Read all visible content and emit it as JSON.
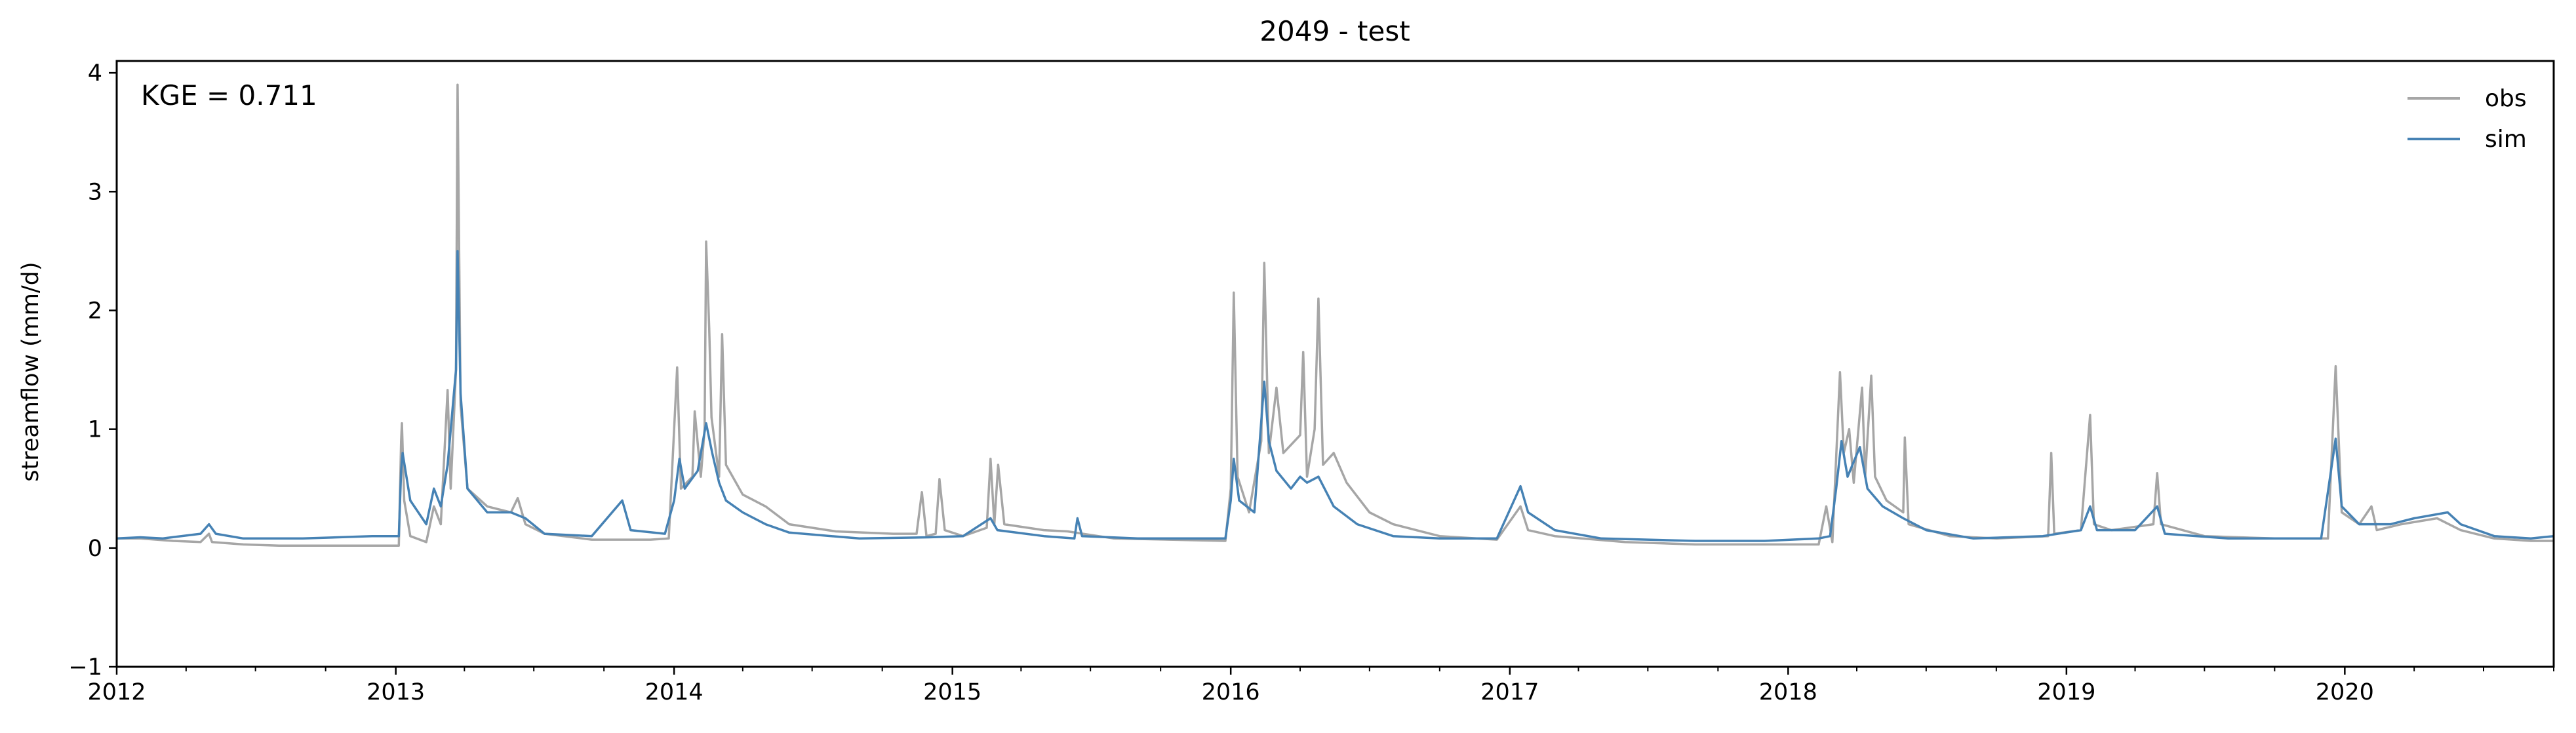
{
  "chart_data": {
    "type": "line",
    "title": "2049 - test",
    "xlabel": "",
    "ylabel": "streamflow (mm/d)",
    "xlim": [
      "2012-01-01",
      "2020-10-01"
    ],
    "ylim": [
      -1,
      4.1
    ],
    "yticks": [
      -1,
      0,
      1,
      2,
      3,
      4
    ],
    "xticks": [
      "2012",
      "2013",
      "2014",
      "2015",
      "2016",
      "2017",
      "2018",
      "2019",
      "2020"
    ],
    "grid": false,
    "legend": {
      "position": "top-right",
      "entries": [
        "obs",
        "sim"
      ]
    },
    "annotation": "KGE = 0.711",
    "colors": {
      "obs": "#a6a6a6",
      "sim": "#4682b4"
    },
    "series": [
      {
        "name": "obs",
        "points": [
          [
            "2012-01-01",
            0.08
          ],
          [
            "2012-02-01",
            0.08
          ],
          [
            "2012-03-15",
            0.06
          ],
          [
            "2012-04-20",
            0.05
          ],
          [
            "2012-05-01",
            0.12
          ],
          [
            "2012-05-05",
            0.05
          ],
          [
            "2012-06-15",
            0.03
          ],
          [
            "2012-08-01",
            0.02
          ],
          [
            "2012-10-01",
            0.02
          ],
          [
            "2012-12-01",
            0.02
          ],
          [
            "2013-01-05",
            0.02
          ],
          [
            "2013-01-08",
            0.9
          ],
          [
            "2013-01-09",
            1.05
          ],
          [
            "2013-01-12",
            0.4
          ],
          [
            "2013-01-20",
            0.1
          ],
          [
            "2013-02-10",
            0.05
          ],
          [
            "2013-02-20",
            0.35
          ],
          [
            "2013-03-01",
            0.2
          ],
          [
            "2013-03-10",
            1.33
          ],
          [
            "2013-03-14",
            0.5
          ],
          [
            "2013-03-21",
            1.5
          ],
          [
            "2013-03-23",
            3.9
          ],
          [
            "2013-03-27",
            1.2
          ],
          [
            "2013-04-05",
            0.5
          ],
          [
            "2013-05-01",
            0.35
          ],
          [
            "2013-06-01",
            0.3
          ],
          [
            "2013-06-10",
            0.42
          ],
          [
            "2013-06-20",
            0.2
          ],
          [
            "2013-07-15",
            0.12
          ],
          [
            "2013-09-15",
            0.07
          ],
          [
            "2013-12-01",
            0.07
          ],
          [
            "2013-12-25",
            0.08
          ],
          [
            "2014-01-01",
            1.0
          ],
          [
            "2014-01-05",
            1.52
          ],
          [
            "2014-01-10",
            0.5
          ],
          [
            "2014-01-25",
            0.6
          ],
          [
            "2014-01-28",
            1.15
          ],
          [
            "2014-02-05",
            0.6
          ],
          [
            "2014-02-10",
            1.0
          ],
          [
            "2014-02-12",
            2.58
          ],
          [
            "2014-02-16",
            1.85
          ],
          [
            "2014-02-19",
            1.1
          ],
          [
            "2014-03-01",
            0.6
          ],
          [
            "2014-03-05",
            1.8
          ],
          [
            "2014-03-10",
            0.7
          ],
          [
            "2014-04-01",
            0.45
          ],
          [
            "2014-05-01",
            0.35
          ],
          [
            "2014-06-01",
            0.2
          ],
          [
            "2014-08-01",
            0.14
          ],
          [
            "2014-10-15",
            0.12
          ],
          [
            "2014-11-15",
            0.12
          ],
          [
            "2014-11-22",
            0.47
          ],
          [
            "2014-11-28",
            0.1
          ],
          [
            "2014-12-10",
            0.12
          ],
          [
            "2014-12-15",
            0.58
          ],
          [
            "2014-12-22",
            0.15
          ],
          [
            "2015-01-15",
            0.1
          ],
          [
            "2015-02-15",
            0.17
          ],
          [
            "2015-02-20",
            0.75
          ],
          [
            "2015-02-25",
            0.2
          ],
          [
            "2015-03-02",
            0.7
          ],
          [
            "2015-03-10",
            0.2
          ],
          [
            "2015-05-01",
            0.15
          ],
          [
            "2015-06-01",
            0.14
          ],
          [
            "2015-08-01",
            0.08
          ],
          [
            "2015-12-25",
            0.06
          ],
          [
            "2016-01-01",
            0.5
          ],
          [
            "2016-01-05",
            2.15
          ],
          [
            "2016-01-10",
            0.6
          ],
          [
            "2016-01-25",
            0.3
          ],
          [
            "2016-02-10",
            0.9
          ],
          [
            "2016-02-14",
            2.4
          ],
          [
            "2016-02-20",
            0.8
          ],
          [
            "2016-03-01",
            1.35
          ],
          [
            "2016-03-10",
            0.8
          ],
          [
            "2016-04-01",
            0.95
          ],
          [
            "2016-04-05",
            1.65
          ],
          [
            "2016-04-10",
            0.6
          ],
          [
            "2016-04-20",
            1.0
          ],
          [
            "2016-04-25",
            2.1
          ],
          [
            "2016-05-01",
            0.7
          ],
          [
            "2016-05-15",
            0.8
          ],
          [
            "2016-06-01",
            0.55
          ],
          [
            "2016-07-01",
            0.3
          ],
          [
            "2016-08-01",
            0.2
          ],
          [
            "2016-10-01",
            0.1
          ],
          [
            "2016-12-15",
            0.07
          ],
          [
            "2017-01-15",
            0.35
          ],
          [
            "2017-01-25",
            0.15
          ],
          [
            "2017-03-01",
            0.1
          ],
          [
            "2017-06-01",
            0.05
          ],
          [
            "2017-09-01",
            0.03
          ],
          [
            "2017-12-01",
            0.03
          ],
          [
            "2018-02-10",
            0.03
          ],
          [
            "2018-02-20",
            0.35
          ],
          [
            "2018-02-28",
            0.05
          ],
          [
            "2018-03-10",
            1.48
          ],
          [
            "2018-03-15",
            0.8
          ],
          [
            "2018-03-22",
            1.0
          ],
          [
            "2018-03-28",
            0.55
          ],
          [
            "2018-04-08",
            1.35
          ],
          [
            "2018-04-12",
            0.6
          ],
          [
            "2018-04-20",
            1.45
          ],
          [
            "2018-04-25",
            0.6
          ],
          [
            "2018-05-10",
            0.4
          ],
          [
            "2018-06-01",
            0.3
          ],
          [
            "2018-06-03",
            0.93
          ],
          [
            "2018-06-08",
            0.2
          ],
          [
            "2018-08-01",
            0.1
          ],
          [
            "2018-10-01",
            0.08
          ],
          [
            "2018-12-08",
            0.1
          ],
          [
            "2018-12-12",
            0.8
          ],
          [
            "2018-12-16",
            0.12
          ],
          [
            "2019-01-20",
            0.15
          ],
          [
            "2019-02-01",
            1.12
          ],
          [
            "2019-02-06",
            0.2
          ],
          [
            "2019-03-01",
            0.15
          ],
          [
            "2019-04-25",
            0.2
          ],
          [
            "2019-04-30",
            0.63
          ],
          [
            "2019-05-05",
            0.2
          ],
          [
            "2019-07-01",
            0.1
          ],
          [
            "2019-10-01",
            0.08
          ],
          [
            "2019-12-10",
            0.08
          ],
          [
            "2019-12-20",
            1.53
          ],
          [
            "2019-12-28",
            0.3
          ],
          [
            "2020-01-20",
            0.2
          ],
          [
            "2020-02-05",
            0.35
          ],
          [
            "2020-02-12",
            0.15
          ],
          [
            "2020-03-15",
            0.2
          ],
          [
            "2020-05-01",
            0.25
          ],
          [
            "2020-06-01",
            0.15
          ],
          [
            "2020-07-15",
            0.08
          ],
          [
            "2020-09-01",
            0.06
          ],
          [
            "2020-10-01",
            0.06
          ]
        ]
      },
      {
        "name": "sim",
        "points": [
          [
            "2012-01-01",
            0.08
          ],
          [
            "2012-02-01",
            0.09
          ],
          [
            "2012-03-01",
            0.08
          ],
          [
            "2012-04-20",
            0.12
          ],
          [
            "2012-05-01",
            0.2
          ],
          [
            "2012-05-10",
            0.12
          ],
          [
            "2012-06-15",
            0.08
          ],
          [
            "2012-09-01",
            0.08
          ],
          [
            "2012-12-01",
            0.1
          ],
          [
            "2013-01-05",
            0.1
          ],
          [
            "2013-01-08",
            0.65
          ],
          [
            "2013-01-10",
            0.8
          ],
          [
            "2013-01-20",
            0.4
          ],
          [
            "2013-02-10",
            0.2
          ],
          [
            "2013-02-20",
            0.5
          ],
          [
            "2013-03-01",
            0.35
          ],
          [
            "2013-03-10",
            0.7
          ],
          [
            "2013-03-21",
            1.5
          ],
          [
            "2013-03-23",
            2.5
          ],
          [
            "2013-03-27",
            1.3
          ],
          [
            "2013-04-05",
            0.5
          ],
          [
            "2013-05-01",
            0.3
          ],
          [
            "2013-06-01",
            0.3
          ],
          [
            "2013-06-20",
            0.25
          ],
          [
            "2013-07-15",
            0.12
          ],
          [
            "2013-09-15",
            0.1
          ],
          [
            "2013-10-25",
            0.4
          ],
          [
            "2013-11-05",
            0.15
          ],
          [
            "2013-12-20",
            0.12
          ],
          [
            "2014-01-01",
            0.4
          ],
          [
            "2014-01-08",
            0.75
          ],
          [
            "2014-01-15",
            0.5
          ],
          [
            "2014-02-01",
            0.65
          ],
          [
            "2014-02-12",
            1.05
          ],
          [
            "2014-02-20",
            0.8
          ],
          [
            "2014-03-01",
            0.55
          ],
          [
            "2014-03-10",
            0.4
          ],
          [
            "2014-04-01",
            0.3
          ],
          [
            "2014-05-01",
            0.2
          ],
          [
            "2014-06-01",
            0.13
          ],
          [
            "2014-09-01",
            0.08
          ],
          [
            "2014-12-01",
            0.09
          ],
          [
            "2015-01-15",
            0.1
          ],
          [
            "2015-02-20",
            0.25
          ],
          [
            "2015-03-01",
            0.15
          ],
          [
            "2015-05-01",
            0.1
          ],
          [
            "2015-06-10",
            0.08
          ],
          [
            "2015-06-14",
            0.25
          ],
          [
            "2015-06-20",
            0.1
          ],
          [
            "2015-09-01",
            0.08
          ],
          [
            "2015-12-25",
            0.08
          ],
          [
            "2016-01-01",
            0.4
          ],
          [
            "2016-01-05",
            0.75
          ],
          [
            "2016-01-12",
            0.4
          ],
          [
            "2016-02-01",
            0.3
          ],
          [
            "2016-02-14",
            1.4
          ],
          [
            "2016-02-20",
            0.9
          ],
          [
            "2016-03-01",
            0.65
          ],
          [
            "2016-03-20",
            0.5
          ],
          [
            "2016-04-01",
            0.6
          ],
          [
            "2016-04-10",
            0.55
          ],
          [
            "2016-04-25",
            0.6
          ],
          [
            "2016-05-15",
            0.35
          ],
          [
            "2016-06-15",
            0.2
          ],
          [
            "2016-08-01",
            0.1
          ],
          [
            "2016-10-01",
            0.08
          ],
          [
            "2016-12-15",
            0.08
          ],
          [
            "2017-01-15",
            0.52
          ],
          [
            "2017-01-25",
            0.3
          ],
          [
            "2017-03-01",
            0.15
          ],
          [
            "2017-05-01",
            0.08
          ],
          [
            "2017-09-01",
            0.06
          ],
          [
            "2017-12-01",
            0.06
          ],
          [
            "2018-02-10",
            0.08
          ],
          [
            "2018-02-25",
            0.1
          ],
          [
            "2018-03-05",
            0.5
          ],
          [
            "2018-03-12",
            0.9
          ],
          [
            "2018-03-20",
            0.6
          ],
          [
            "2018-04-05",
            0.85
          ],
          [
            "2018-04-15",
            0.5
          ],
          [
            "2018-05-05",
            0.35
          ],
          [
            "2018-06-01",
            0.25
          ],
          [
            "2018-07-01",
            0.15
          ],
          [
            "2018-09-01",
            0.08
          ],
          [
            "2018-12-01",
            0.1
          ],
          [
            "2019-01-20",
            0.15
          ],
          [
            "2019-02-01",
            0.35
          ],
          [
            "2019-02-10",
            0.15
          ],
          [
            "2019-04-01",
            0.15
          ],
          [
            "2019-04-30",
            0.35
          ],
          [
            "2019-05-10",
            0.12
          ],
          [
            "2019-08-01",
            0.08
          ],
          [
            "2019-12-01",
            0.08
          ],
          [
            "2019-12-20",
            0.92
          ],
          [
            "2019-12-28",
            0.35
          ],
          [
            "2020-01-20",
            0.2
          ],
          [
            "2020-03-01",
            0.2
          ],
          [
            "2020-04-01",
            0.25
          ],
          [
            "2020-05-15",
            0.3
          ],
          [
            "2020-06-01",
            0.2
          ],
          [
            "2020-07-15",
            0.1
          ],
          [
            "2020-09-01",
            0.08
          ],
          [
            "2020-10-01",
            0.1
          ]
        ]
      }
    ]
  }
}
